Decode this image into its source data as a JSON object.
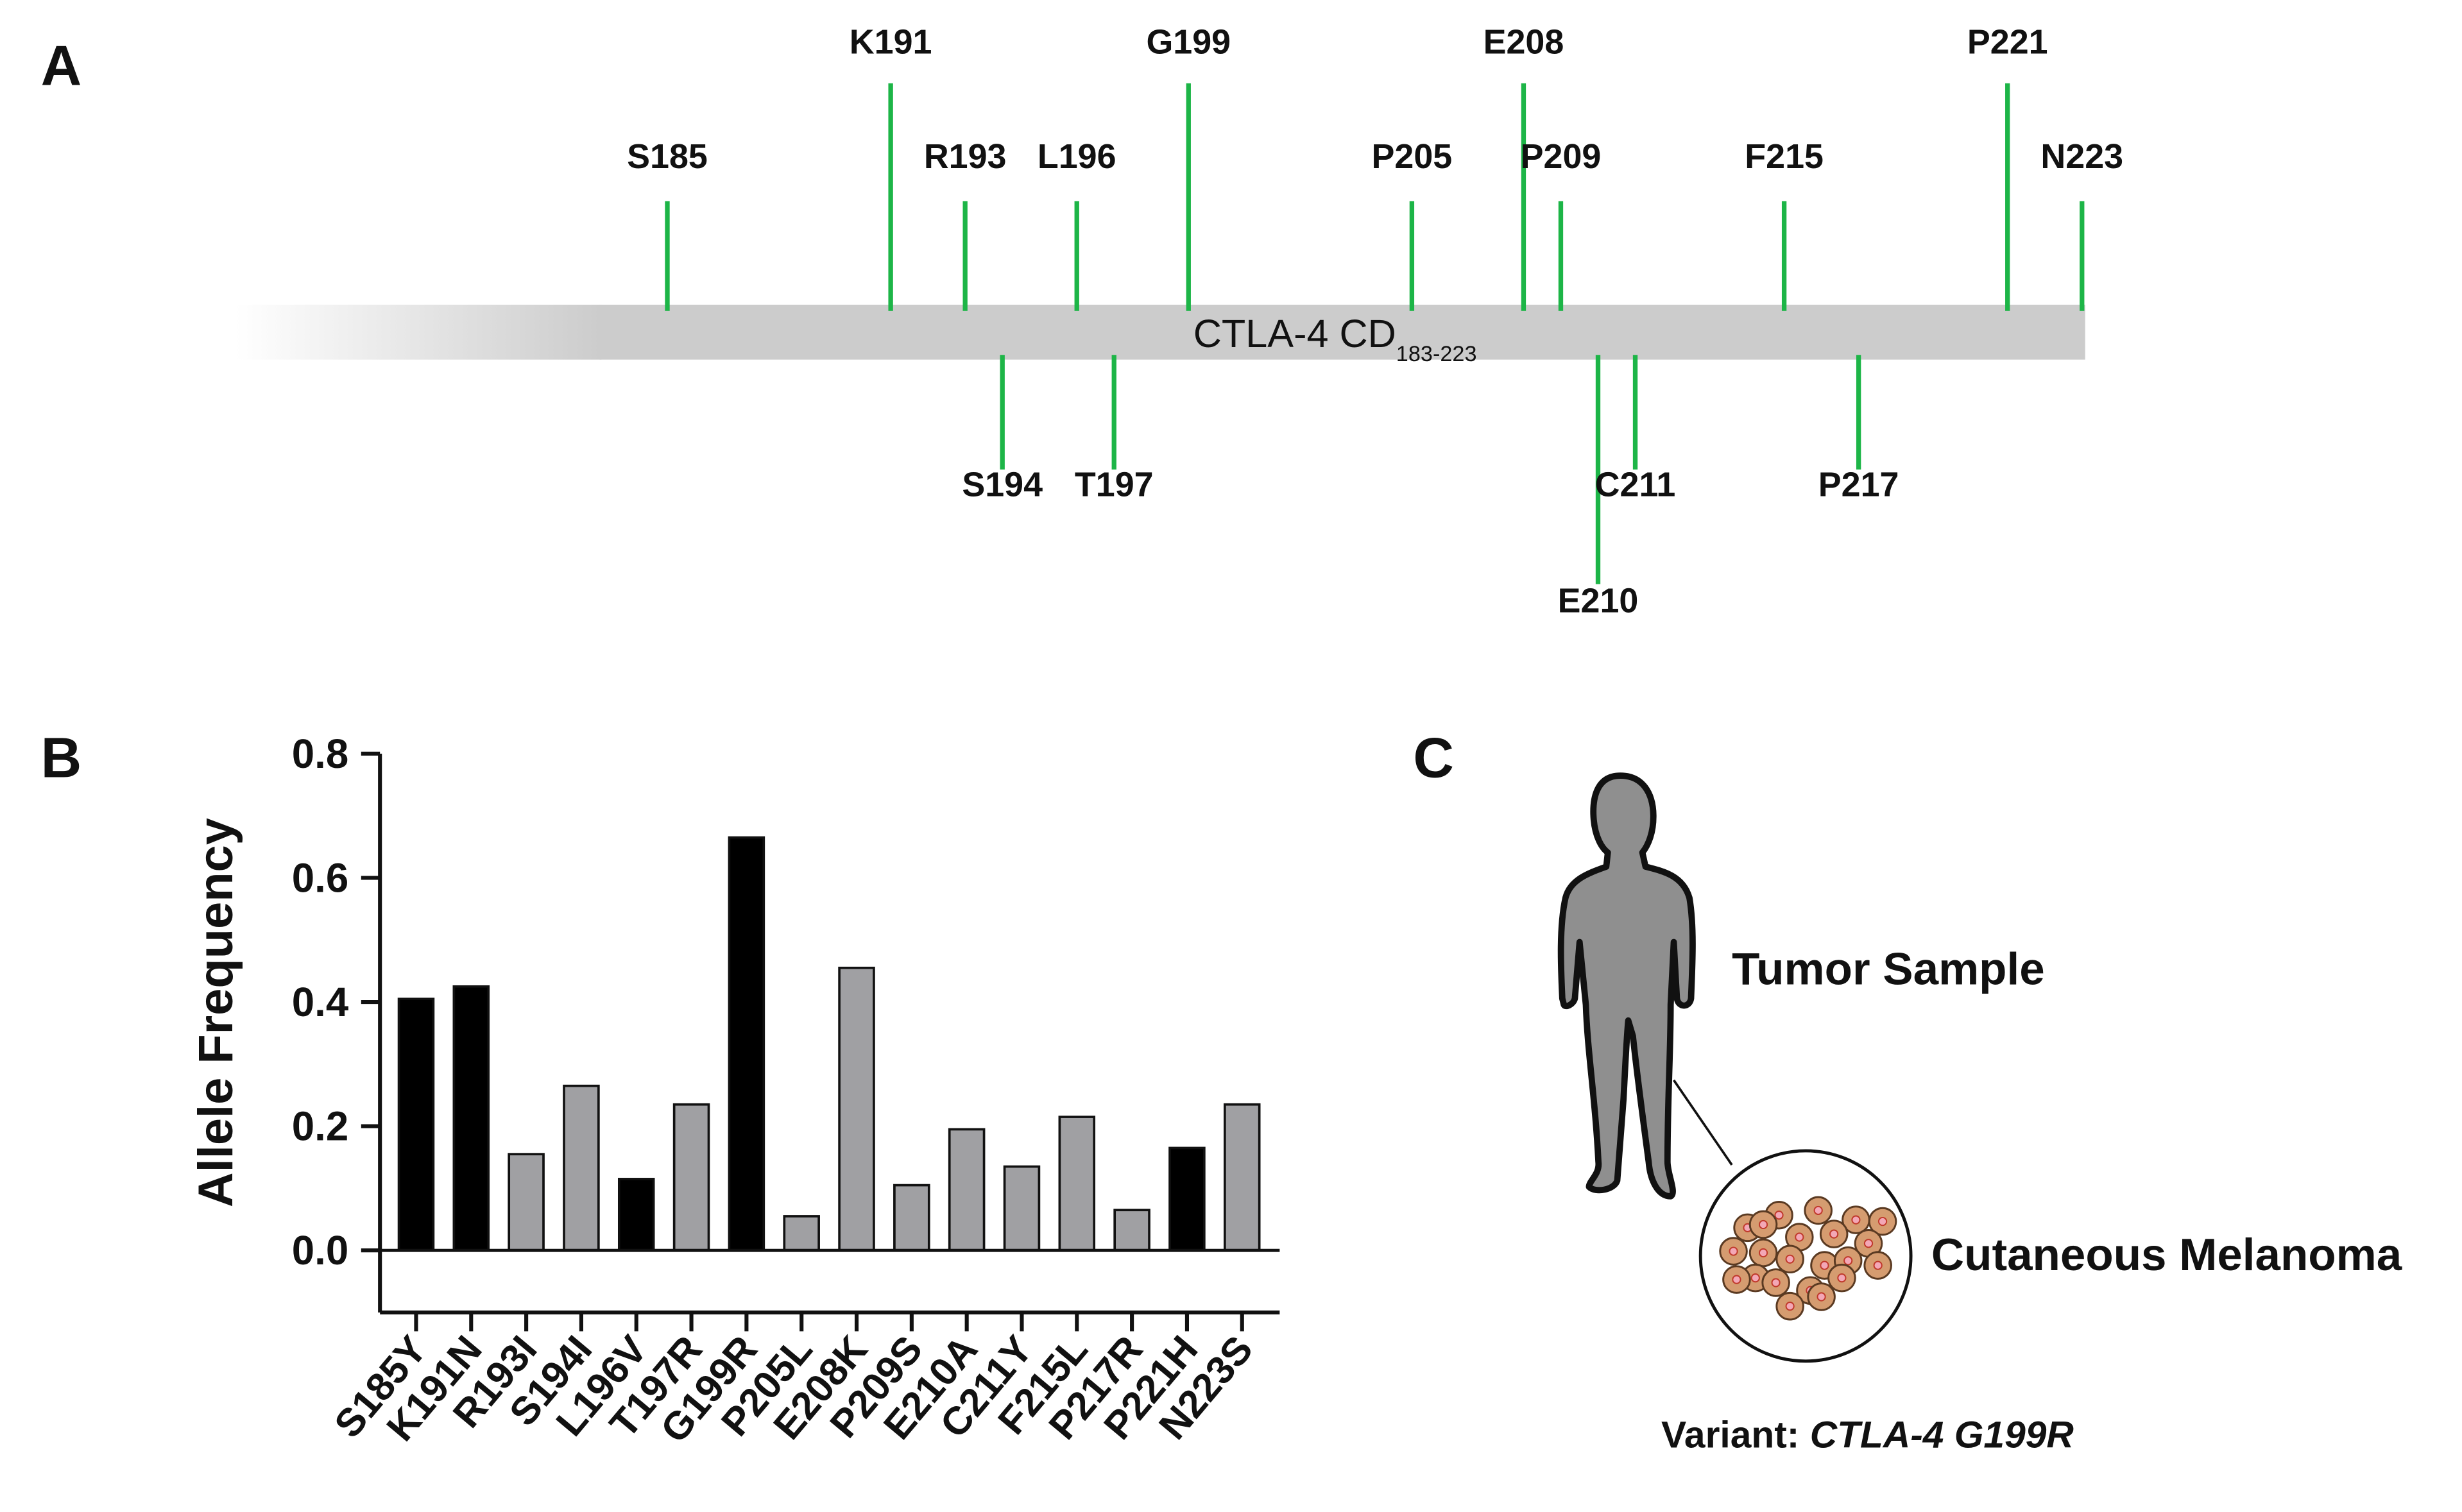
{
  "panel_labels": [
    "A",
    "B",
    "C"
  ],
  "panel_a": {
    "domain_label": "CTLA-4 CD",
    "domain_subscript": "183-223",
    "sites": [
      "S185",
      "K191",
      "R193",
      "S194",
      "L196",
      "T197",
      "G199",
      "P205",
      "E208",
      "P209",
      "E210",
      "C211",
      "F215",
      "P217",
      "P221",
      "N223"
    ],
    "site_color": "#1db547"
  },
  "chart_data": {
    "type": "bar",
    "y_label": "Allele Frequency",
    "categories": [
      "S185Y",
      "K191N",
      "R193I",
      "S194I",
      "L196V",
      "T197R",
      "G199R",
      "P205L",
      "E208K",
      "P209S",
      "E210A",
      "C211Y",
      "F215L",
      "P217R",
      "P221H",
      "N223S"
    ],
    "values": [
      0.405,
      0.425,
      0.155,
      0.265,
      0.115,
      0.235,
      0.665,
      0.055,
      0.455,
      0.105,
      0.195,
      0.135,
      0.215,
      0.065,
      0.165,
      0.235
    ],
    "colors": [
      "#000000",
      "#000000",
      "#a0a0a3",
      "#a0a0a3",
      "#000000",
      "#a0a0a3",
      "#000000",
      "#a0a0a3",
      "#a0a0a3",
      "#a0a0a3",
      "#a0a0a3",
      "#a0a0a3",
      "#a0a0a3",
      "#a0a0a3",
      "#000000",
      "#a0a0a3"
    ],
    "ylim": [
      -0.1,
      0.8
    ],
    "yticks": [
      {
        "value": 0,
        "label": "0.0"
      },
      0.2,
      0.4,
      0.6,
      0.8
    ]
  },
  "panel_c": {
    "sample_label": "Tumor Sample",
    "tissue_label": "Cutaneous Melanoma",
    "variant_prefix": "Variant: ",
    "variant_name": "CTLA-4 G199R"
  }
}
